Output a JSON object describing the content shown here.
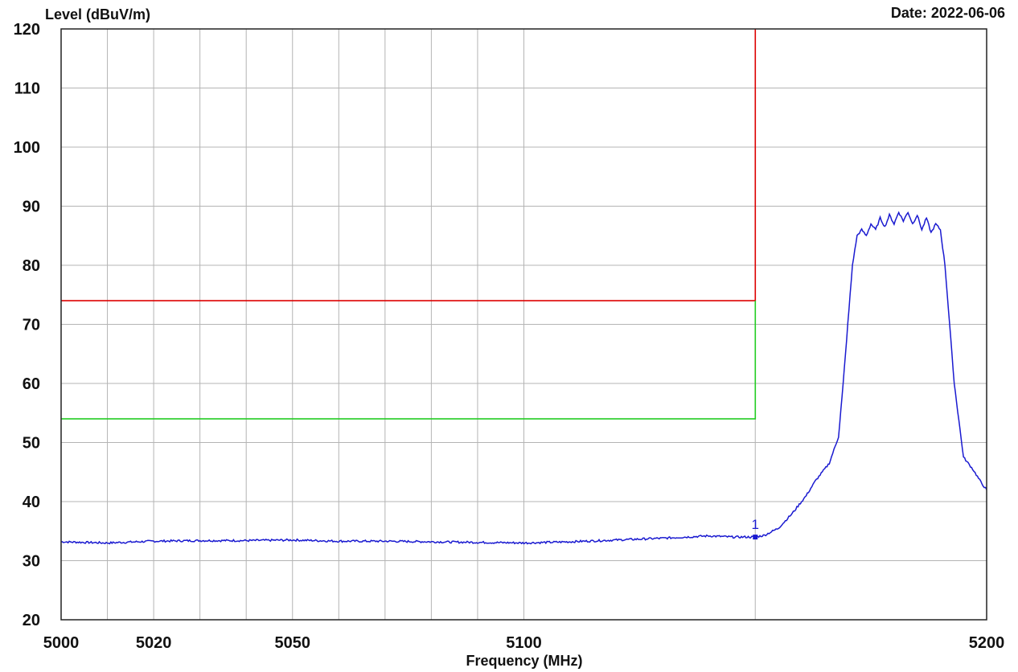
{
  "header": {
    "ylabel": "Level (dBuV/m)",
    "date": "Date: 2022-06-06"
  },
  "chart_data": {
    "type": "line",
    "xlabel": "Frequency (MHz)",
    "ylabel": "Level (dBuV/m)",
    "xlim": [
      5000,
      5200
    ],
    "ylim": [
      20,
      120
    ],
    "x_ticks": [
      5000,
      5020,
      5050,
      5100,
      5200
    ],
    "x_tick_labels": [
      "5000",
      "5020",
      "5050",
      "5100",
      "5200"
    ],
    "x_gridlines": [
      5000,
      5010,
      5020,
      5030,
      5040,
      5050,
      5060,
      5070,
      5080,
      5090,
      5100,
      5150,
      5200
    ],
    "y_ticks": [
      20,
      30,
      40,
      50,
      60,
      70,
      80,
      90,
      100,
      110,
      120
    ],
    "y_tick_labels": [
      "20",
      "30",
      "40",
      "50",
      "60",
      "70",
      "80",
      "90",
      "100",
      "110",
      "120"
    ],
    "grid": true,
    "limit_lines": [
      {
        "color": "#dd0000",
        "points": [
          [
            5000,
            74
          ],
          [
            5150,
            74
          ],
          [
            5150,
            120
          ]
        ]
      },
      {
        "color": "#22cc22",
        "points": [
          [
            5000,
            54
          ],
          [
            5150,
            54
          ],
          [
            5150,
            74
          ]
        ]
      }
    ],
    "series": [
      {
        "color": "#1a1ad0",
        "x": [
          5000,
          5010,
          5020,
          5030,
          5040,
          5050,
          5060,
          5070,
          5080,
          5090,
          5100,
          5110,
          5120,
          5130,
          5140,
          5145,
          5150,
          5152,
          5155,
          5158,
          5161,
          5163,
          5165,
          5166,
          5168,
          5169,
          5170,
          5171,
          5172,
          5173,
          5174,
          5175,
          5176,
          5177,
          5178,
          5179,
          5180,
          5181,
          5182,
          5183,
          5184,
          5185,
          5186,
          5187,
          5188,
          5189,
          5190,
          5191,
          5192,
          5193,
          5195,
          5197,
          5199,
          5200
        ],
        "y": [
          33.2,
          33.0,
          33.3,
          33.4,
          33.4,
          33.5,
          33.3,
          33.3,
          33.2,
          33.1,
          33.0,
          33.2,
          33.5,
          33.8,
          34.2,
          34.0,
          34.0,
          34.3,
          35.5,
          38.0,
          41.0,
          43.5,
          45.5,
          46.5,
          51.0,
          60.0,
          70.0,
          80.0,
          85.0,
          86.0,
          85.0,
          87.0,
          86.0,
          88.0,
          86.5,
          88.5,
          87.0,
          89.0,
          87.5,
          89.0,
          87.0,
          88.5,
          86.0,
          88.0,
          85.5,
          87.0,
          86.0,
          80.0,
          70.0,
          60.0,
          47.5,
          45.5,
          43.0,
          42.0
        ]
      }
    ],
    "markers": [
      {
        "label": "1",
        "x": 5150,
        "y": 34.0
      }
    ]
  }
}
